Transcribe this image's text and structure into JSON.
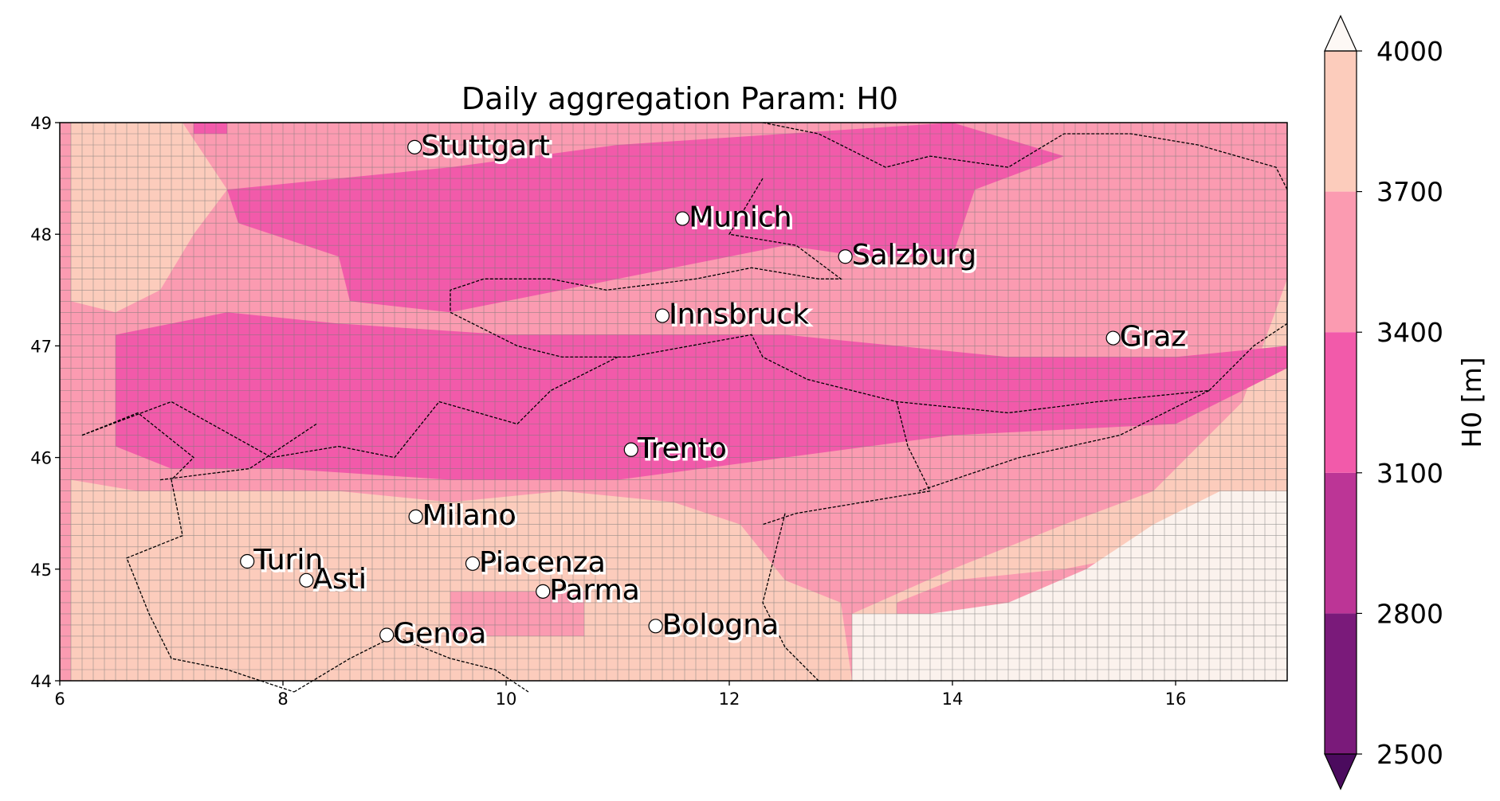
{
  "chart_data": {
    "type": "heatmap",
    "title": "Daily aggregation Param: H0",
    "x_axis": {
      "range": [
        6,
        17
      ],
      "ticks": [
        "6",
        "8",
        "10",
        "12",
        "14",
        "16"
      ]
    },
    "y_axis": {
      "range": [
        44,
        49
      ],
      "ticks": [
        "44",
        "45",
        "46",
        "47",
        "48",
        "49"
      ]
    },
    "colorbar": {
      "label": "H0  [m]",
      "levels": [
        "2500",
        "2800",
        "3100",
        "3400",
        "3700",
        "4000"
      ],
      "colors": [
        "#7a1a7a",
        "#bc3596",
        "#f25aaa",
        "#fb9bb1",
        "#fcccbc",
        "#fbf2ed"
      ],
      "extend": "both",
      "under_color": "#4b0b5e",
      "over_color": "#fdf8f5"
    },
    "field_classes": {
      "3100-3400": "#f25aaa",
      "3400-3700": "#fb9bb1",
      "3700-4000": "#fcccbc",
      ">4000": "#fbf2ed"
    },
    "cities": [
      {
        "name": "Stuttgart",
        "lon": 9.18,
        "lat": 48.78
      },
      {
        "name": "Munich",
        "lon": 11.58,
        "lat": 48.14
      },
      {
        "name": "Salzburg",
        "lon": 13.04,
        "lat": 47.8
      },
      {
        "name": "Innsbruck",
        "lon": 11.4,
        "lat": 47.27
      },
      {
        "name": "Graz",
        "lon": 15.44,
        "lat": 47.07
      },
      {
        "name": "Trento",
        "lon": 11.12,
        "lat": 46.07
      },
      {
        "name": "Milano",
        "lon": 9.19,
        "lat": 45.47
      },
      {
        "name": "Turin",
        "lon": 7.68,
        "lat": 45.07
      },
      {
        "name": "Asti",
        "lon": 8.21,
        "lat": 44.9
      },
      {
        "name": "Piacenza",
        "lon": 9.7,
        "lat": 45.05
      },
      {
        "name": "Parma",
        "lon": 10.33,
        "lat": 44.8
      },
      {
        "name": "Genoa",
        "lon": 8.93,
        "lat": 44.41
      },
      {
        "name": "Bologna",
        "lon": 11.34,
        "lat": 44.49
      }
    ]
  }
}
